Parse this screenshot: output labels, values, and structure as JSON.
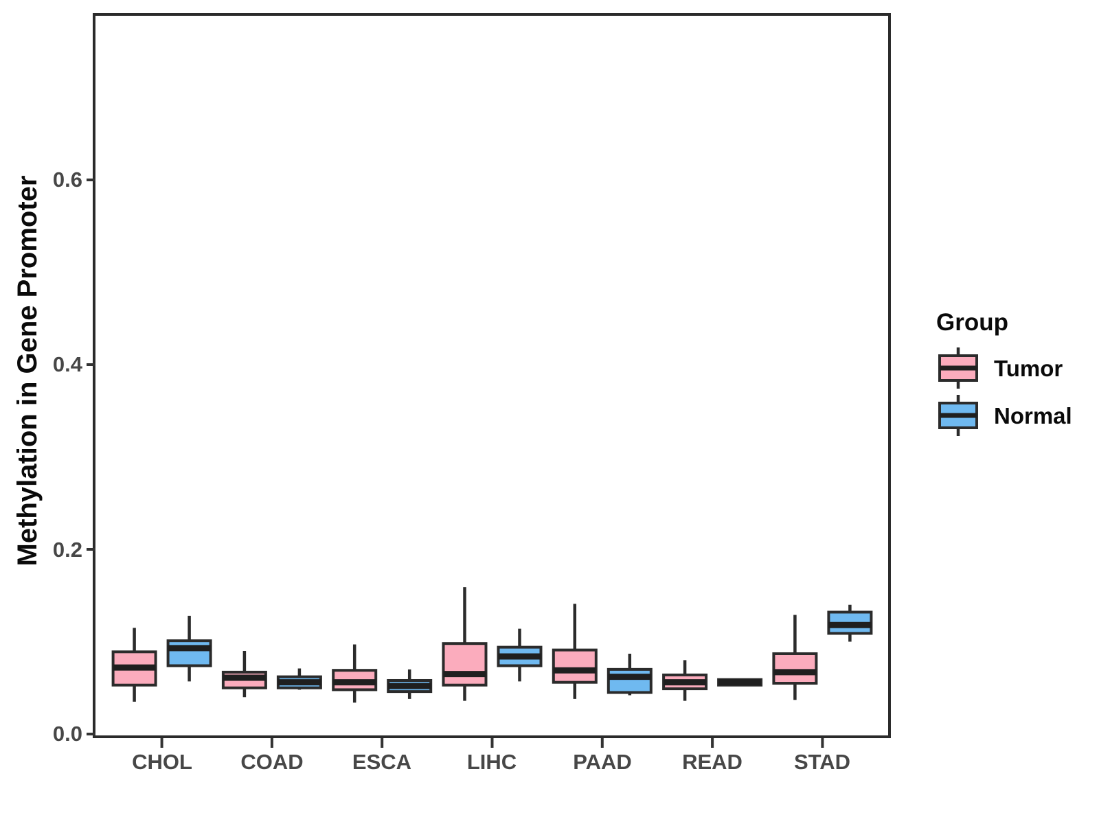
{
  "chart_data": {
    "type": "boxplot",
    "title": "",
    "xlabel": "",
    "ylabel": "Methylation in Gene Promoter",
    "categories": [
      "CHOL",
      "COAD",
      "ESCA",
      "LIHC",
      "PAAD",
      "READ",
      "STAD"
    ],
    "y_ticks": [
      "0.0",
      "0.2",
      "0.4",
      "0.6"
    ],
    "y_tick_values": [
      0.0,
      0.2,
      0.4,
      0.6
    ],
    "ylim": [
      0,
      0.78
    ],
    "grid": "off",
    "legend": {
      "title": "Group",
      "position": "right",
      "entries": [
        {
          "label": "Tumor",
          "color": "#FBACBD"
        },
        {
          "label": "Normal",
          "color": "#6FB9F0"
        }
      ]
    },
    "colors": {
      "tumor_fill": "#FBACBD",
      "normal_fill": "#6FB9F0",
      "box_stroke": "#2b2b2b",
      "median_stroke": "#1f1f1f",
      "axis_text": "#474747",
      "title_text": "#0a0a0a"
    },
    "series": [
      {
        "name": "Tumor",
        "color": "#FBACBD",
        "boxes": [
          {
            "category": "CHOL",
            "whislo": 0.035,
            "q1": 0.053,
            "med": 0.072,
            "q3": 0.089,
            "whishi": 0.115
          },
          {
            "category": "COAD",
            "whislo": 0.04,
            "q1": 0.05,
            "med": 0.061,
            "q3": 0.067,
            "whishi": 0.09
          },
          {
            "category": "ESCA",
            "whislo": 0.034,
            "q1": 0.048,
            "med": 0.056,
            "q3": 0.069,
            "whishi": 0.097
          },
          {
            "category": "LIHC",
            "whislo": 0.036,
            "q1": 0.053,
            "med": 0.065,
            "q3": 0.098,
            "whishi": 0.159
          },
          {
            "category": "PAAD",
            "whislo": 0.038,
            "q1": 0.056,
            "med": 0.069,
            "q3": 0.091,
            "whishi": 0.141
          },
          {
            "category": "READ",
            "whislo": 0.036,
            "q1": 0.049,
            "med": 0.056,
            "q3": 0.064,
            "whishi": 0.08
          },
          {
            "category": "STAD",
            "whislo": 0.037,
            "q1": 0.055,
            "med": 0.067,
            "q3": 0.087,
            "whishi": 0.129
          }
        ]
      },
      {
        "name": "Normal",
        "color": "#6FB9F0",
        "boxes": [
          {
            "category": "CHOL",
            "whislo": 0.057,
            "q1": 0.074,
            "med": 0.093,
            "q3": 0.101,
            "whishi": 0.128
          },
          {
            "category": "COAD",
            "whislo": 0.048,
            "q1": 0.05,
            "med": 0.056,
            "q3": 0.062,
            "whishi": 0.071
          },
          {
            "category": "ESCA",
            "whislo": 0.038,
            "q1": 0.046,
            "med": 0.052,
            "q3": 0.058,
            "whishi": 0.07
          },
          {
            "category": "LIHC",
            "whislo": 0.057,
            "q1": 0.074,
            "med": 0.084,
            "q3": 0.094,
            "whishi": 0.114
          },
          {
            "category": "PAAD",
            "whislo": 0.042,
            "q1": 0.045,
            "med": 0.062,
            "q3": 0.07,
            "whishi": 0.087
          },
          {
            "category": "READ",
            "whislo": 0.052,
            "q1": 0.053,
            "med": 0.056,
            "q3": 0.059,
            "whishi": 0.06
          },
          {
            "category": "STAD",
            "whislo": 0.1,
            "q1": 0.109,
            "med": 0.118,
            "q3": 0.132,
            "whishi": 0.14
          }
        ]
      }
    ]
  }
}
